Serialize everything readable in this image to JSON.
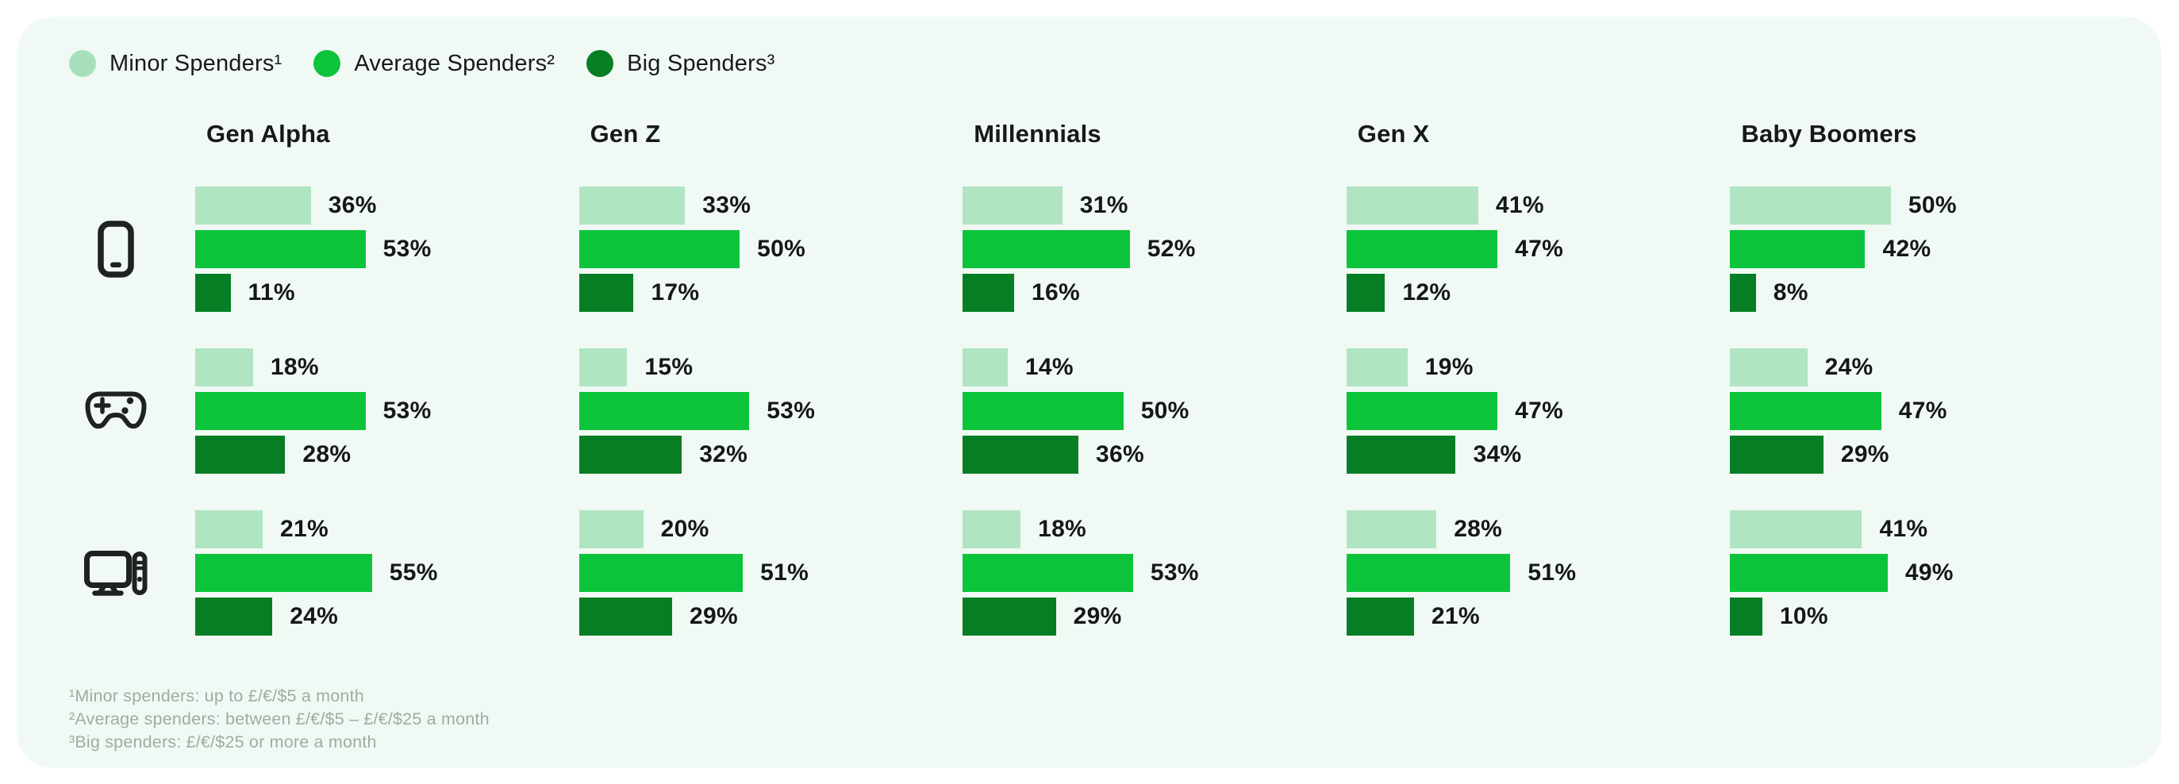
{
  "legend": {
    "items": [
      {
        "label": "Minor Spenders¹",
        "color": "#a9e0bc"
      },
      {
        "label": "Average Spenders²",
        "color": "#0cc43c"
      },
      {
        "label": "Big Spenders³",
        "color": "#067e23"
      }
    ]
  },
  "chart_data": {
    "type": "bar",
    "orientation": "horizontal",
    "value_unit": "%",
    "value_range": [
      0,
      100
    ],
    "tiers": [
      {
        "name": "Minor Spenders",
        "color": "#b0e5c2"
      },
      {
        "name": "Average Spenders",
        "color": "#0cc43c"
      },
      {
        "name": "Big Spenders",
        "color": "#067e23"
      }
    ],
    "generations": [
      "Gen Alpha",
      "Gen Z",
      "Millennials",
      "Gen X",
      "Baby Boomers"
    ],
    "rows": [
      {
        "device": "mobile-phone",
        "values": [
          [
            36,
            53,
            11
          ],
          [
            33,
            50,
            17
          ],
          [
            31,
            52,
            16
          ],
          [
            41,
            47,
            12
          ],
          [
            50,
            42,
            8
          ]
        ]
      },
      {
        "device": "game-controller",
        "values": [
          [
            18,
            53,
            28
          ],
          [
            15,
            53,
            32
          ],
          [
            14,
            50,
            36
          ],
          [
            19,
            47,
            34
          ],
          [
            24,
            47,
            29
          ]
        ]
      },
      {
        "device": "desktop-computer",
        "values": [
          [
            21,
            55,
            24
          ],
          [
            20,
            51,
            29
          ],
          [
            18,
            53,
            29
          ],
          [
            28,
            51,
            21
          ],
          [
            41,
            49,
            10
          ]
        ]
      }
    ]
  },
  "footnotes": [
    "¹Minor spenders: up to £/€/$5 a month",
    "²Average spenders: between £/€/$5 – £/€/$25 a month",
    "³Big spenders: £/€/$25 or more a month"
  ]
}
